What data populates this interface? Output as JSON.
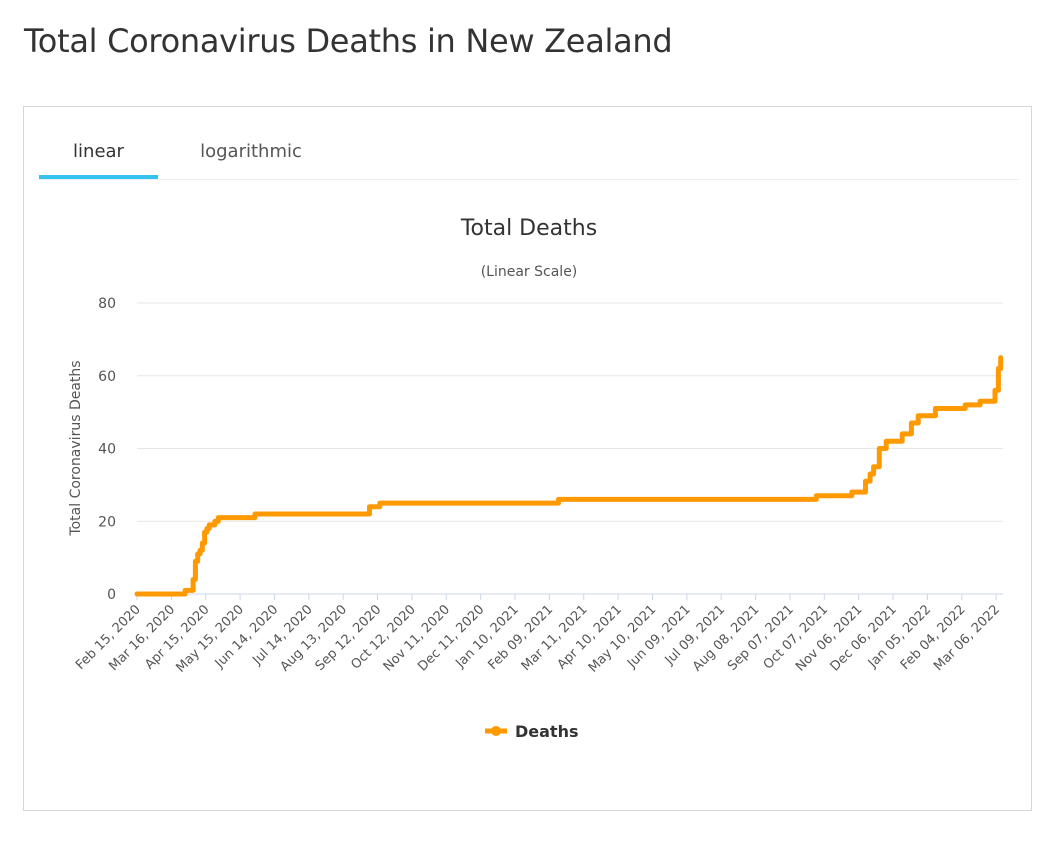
{
  "page": {
    "title": "Total Coronavirus Deaths in New Zealand"
  },
  "tabs": [
    {
      "label": "linear",
      "active": true
    },
    {
      "label": "logarithmic",
      "active": false
    }
  ],
  "colors": {
    "series": "#ff9900",
    "tab_accent": "#33c3f0",
    "grid": "#e6e6e6",
    "zero_line": "#ccd6eb"
  },
  "chart_data": {
    "type": "line",
    "title": "Total Deaths",
    "subtitle": "(Linear Scale)",
    "ylabel": "Total Coronavirus Deaths",
    "xlabel": "",
    "ylim": [
      0,
      80
    ],
    "yticks": [
      0,
      20,
      40,
      60,
      80
    ],
    "xlim": [
      "2020-02-15",
      "2022-03-12"
    ],
    "xticks": [
      "Feb 15, 2020",
      "Mar 16, 2020",
      "Apr 15, 2020",
      "May 15, 2020",
      "Jun 14, 2020",
      "Jul 14, 2020",
      "Aug 13, 2020",
      "Sep 12, 2020",
      "Oct 12, 2020",
      "Nov 11, 2020",
      "Dec 11, 2020",
      "Jan 10, 2021",
      "Feb 09, 2021",
      "Mar 11, 2021",
      "Apr 10, 2021",
      "May 10, 2021",
      "Jun 09, 2021",
      "Jul 09, 2021",
      "Aug 08, 2021",
      "Sep 07, 2021",
      "Oct 07, 2021",
      "Nov 06, 2021",
      "Dec 06, 2021",
      "Jan 05, 2022",
      "Feb 04, 2022",
      "Mar 06, 2022"
    ],
    "grid": true,
    "legend_position": "bottom-center",
    "series": [
      {
        "name": "Deaths",
        "x": [
          "2020-02-15",
          "2020-03-28",
          "2020-04-02",
          "2020-04-04",
          "2020-04-06",
          "2020-04-08",
          "2020-04-10",
          "2020-04-12",
          "2020-04-14",
          "2020-04-16",
          "2020-04-18",
          "2020-04-20",
          "2020-04-23",
          "2020-04-26",
          "2020-04-29",
          "2020-05-03",
          "2020-05-06",
          "2020-05-12",
          "2020-05-28",
          "2020-06-30",
          "2020-08-30",
          "2020-09-05",
          "2020-09-14",
          "2020-12-31",
          "2021-02-17",
          "2021-03-31",
          "2021-06-30",
          "2021-09-05",
          "2021-09-30",
          "2021-10-08",
          "2021-10-31",
          "2021-11-03",
          "2021-11-08",
          "2021-11-12",
          "2021-11-16",
          "2021-11-19",
          "2021-11-24",
          "2021-11-30",
          "2021-12-14",
          "2021-12-22",
          "2021-12-28",
          "2022-01-05",
          "2022-01-12",
          "2022-01-20",
          "2022-02-07",
          "2022-02-20",
          "2022-03-05",
          "2022-03-06",
          "2022-03-08",
          "2022-03-10"
        ],
        "values": [
          0,
          1,
          1,
          4,
          9,
          11,
          12,
          14,
          17,
          18,
          19,
          19,
          20,
          21,
          21,
          21,
          21,
          21,
          22,
          22,
          22,
          24,
          25,
          25,
          26,
          26,
          26,
          26,
          27,
          27,
          28,
          28,
          28,
          31,
          33,
          35,
          40,
          42,
          44,
          47,
          49,
          49,
          51,
          51,
          52,
          53,
          56,
          56,
          62,
          65
        ]
      }
    ]
  }
}
